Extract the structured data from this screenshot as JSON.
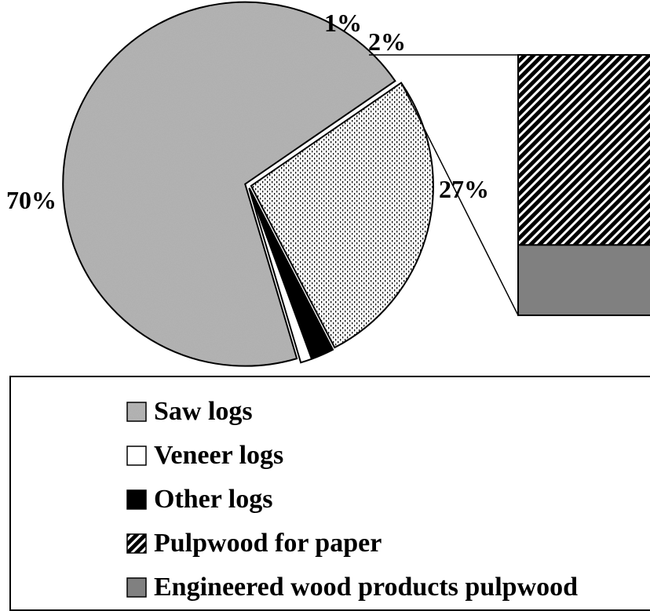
{
  "chart_data": {
    "type": "pie",
    "variant": "pie-of-bar",
    "slices": [
      {
        "name": "Saw logs",
        "value": 70,
        "label": "70%",
        "pattern": "speckled-gray"
      },
      {
        "name": "Veneer logs",
        "value": 1,
        "label": "1%",
        "pattern": "white"
      },
      {
        "name": "Other logs",
        "value": 2,
        "label": "2%",
        "pattern": "black"
      },
      {
        "name": "Pulpwood",
        "value": 27,
        "label": "27%",
        "pattern": "dotted"
      }
    ],
    "breakout": {
      "of_slice": "Pulpwood",
      "segments": [
        {
          "name": "Pulpwood for paper",
          "share_of_slice": 0.73,
          "pattern": "diagonal-hatch"
        },
        {
          "name": "Engineered wood products pulpwood",
          "share_of_slice": 0.27,
          "pattern": "solid-gray"
        }
      ]
    },
    "legend": {
      "placement": "bottom",
      "entries": [
        {
          "label": "Saw logs",
          "swatch": "speckled-gray"
        },
        {
          "label": "Veneer logs",
          "swatch": "white"
        },
        {
          "label": "Other logs",
          "swatch": "black"
        },
        {
          "label": "Pulpwood for paper",
          "swatch": "diagonal-hatch"
        },
        {
          "label": "Engineered wood products pulpwood",
          "swatch": "solid-gray"
        }
      ]
    },
    "colors": {
      "solid_gray": "#808080",
      "black": "#000000",
      "white": "#ffffff",
      "speckle_base": "#a9a9a9"
    }
  }
}
